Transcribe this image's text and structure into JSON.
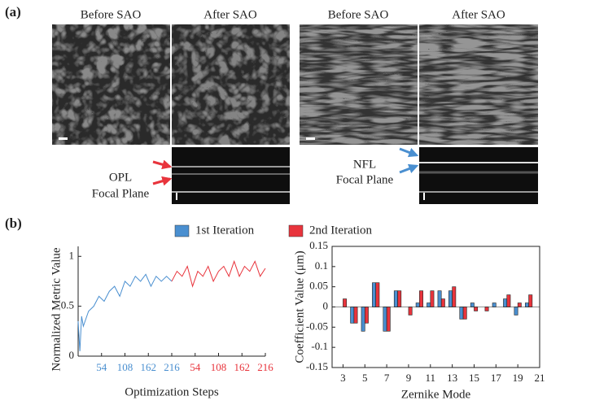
{
  "panel_a": {
    "label": "(a)",
    "image_titles": [
      "Before SAO",
      "After SAO",
      "Before SAO",
      "After SAO"
    ],
    "opl_label": [
      "OPL",
      "Focal Plane"
    ],
    "nfl_label": [
      "NFL",
      "Focal Plane"
    ]
  },
  "panel_b": {
    "label": "(b)"
  },
  "chart_data": [
    {
      "type": "line",
      "x_label": "Optimization Steps",
      "y_label": "Normalized Metric Value",
      "xlim": [
        0,
        432
      ],
      "ylim": [
        0,
        1.1
      ],
      "yticks": [
        0,
        0.5,
        1
      ],
      "xticks": [
        54,
        108,
        162,
        216,
        {
          "value": 270,
          "label": "54"
        },
        {
          "value": 324,
          "label": "108"
        },
        {
          "value": 378,
          "label": "162"
        },
        {
          "value": 432,
          "label": "216"
        }
      ],
      "xtick_colors": [
        "#4a8fd0",
        "#4a8fd0",
        "#4a8fd0",
        "#4a8fd0",
        "#e8343c",
        "#e8343c",
        "#e8343c",
        "#e8343c"
      ],
      "series": [
        {
          "color": "#4a8fd0",
          "x": [
            0,
            4,
            8,
            12,
            24,
            36,
            48,
            60,
            72,
            84,
            96,
            108,
            120,
            132,
            144,
            156,
            168,
            180,
            192,
            204,
            216
          ],
          "values": [
            0.35,
            0.05,
            0.4,
            0.3,
            0.45,
            0.5,
            0.6,
            0.55,
            0.65,
            0.7,
            0.6,
            0.75,
            0.7,
            0.8,
            0.75,
            0.82,
            0.7,
            0.8,
            0.75,
            0.8,
            0.75
          ]
        },
        {
          "color": "#e8343c",
          "x": [
            216,
            228,
            240,
            252,
            264,
            276,
            288,
            300,
            312,
            324,
            336,
            348,
            360,
            372,
            384,
            396,
            408,
            420,
            432
          ],
          "values": [
            0.75,
            0.85,
            0.8,
            0.9,
            0.7,
            0.85,
            0.8,
            0.9,
            0.75,
            0.85,
            0.9,
            0.8,
            0.95,
            0.8,
            0.9,
            0.85,
            0.95,
            0.8,
            0.88
          ]
        }
      ]
    },
    {
      "type": "bar",
      "x_label": "Zernike Mode",
      "y_label": "Coefficient Value (μm)",
      "x": [
        3,
        4,
        5,
        6,
        7,
        8,
        9,
        10,
        11,
        12,
        13,
        14,
        15,
        16,
        17,
        18,
        19,
        20
      ],
      "xlim": [
        2,
        21
      ],
      "xticks": [
        3,
        5,
        7,
        9,
        11,
        13,
        15,
        17,
        19,
        21
      ],
      "ylim": [
        -0.15,
        0.15
      ],
      "yticks": [
        -0.15,
        -0.1,
        -0.05,
        0,
        0.05,
        0.1,
        0.15
      ],
      "series": [
        {
          "name": "1st Iteration",
          "color": "#4a8fd0",
          "values": [
            0,
            -0.04,
            -0.06,
            0.06,
            -0.06,
            0.04,
            0,
            0.01,
            0.01,
            0.04,
            0.04,
            -0.03,
            0.01,
            0,
            0.01,
            0.02,
            -0.02,
            0.01
          ]
        },
        {
          "name": "2nd Iteration",
          "color": "#e8343c",
          "values": [
            0.02,
            -0.04,
            -0.04,
            0.06,
            -0.06,
            0.04,
            -0.02,
            0.04,
            0.04,
            0.02,
            0.05,
            -0.03,
            -0.01,
            -0.01,
            0,
            0.03,
            0.01,
            0.03
          ]
        }
      ]
    }
  ]
}
